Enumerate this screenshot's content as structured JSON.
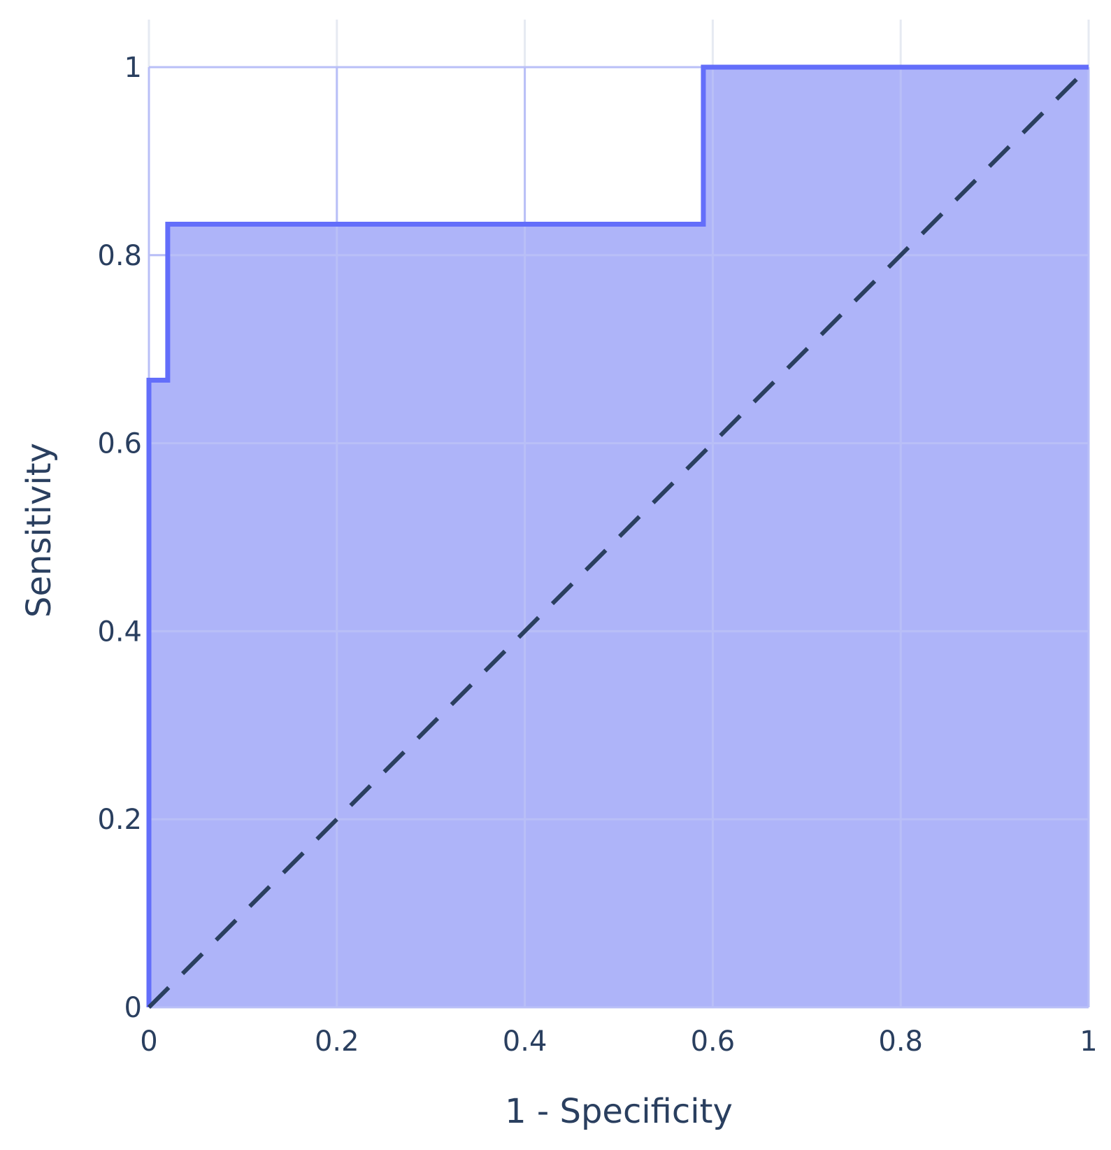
{
  "chart_data": {
    "type": "area",
    "xlabel": "1 - Specificity",
    "ylabel": "Sensitivity",
    "xlim": [
      0,
      1
    ],
    "ylim": [
      0,
      1
    ],
    "xticks": [
      "0",
      "0.2",
      "0.4",
      "0.6",
      "0.8",
      "1"
    ],
    "yticks": [
      "0",
      "0.2",
      "0.4",
      "0.6",
      "0.8",
      "1"
    ],
    "grid": true,
    "legend": "none",
    "series": [
      {
        "kind": "roc-step",
        "color": "#636efa",
        "fill_color": "#aeb4f9",
        "x": [
          0,
          0,
          0.02,
          0.02,
          0.59,
          0.59,
          1
        ],
        "y": [
          0,
          0.667,
          0.667,
          0.833,
          0.833,
          1,
          1
        ]
      },
      {
        "kind": "reference-diagonal",
        "color": "#2a3f5f",
        "dash": "dashed",
        "x": [
          0,
          1
        ],
        "y": [
          0,
          1
        ]
      }
    ]
  }
}
